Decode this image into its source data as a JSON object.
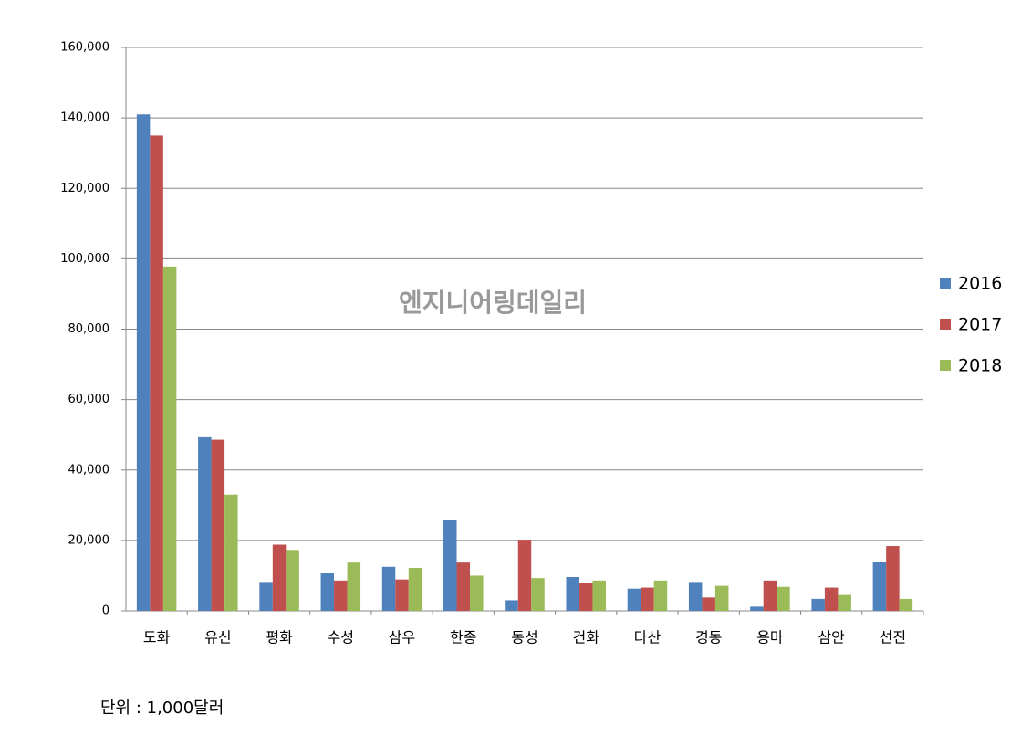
{
  "chart_data": {
    "type": "bar",
    "categories": [
      "도화",
      "유신",
      "평화",
      "수성",
      "삼우",
      "한종",
      "동성",
      "건화",
      "다산",
      "경동",
      "용마",
      "삼안",
      "선진"
    ],
    "series": [
      {
        "name": "2016",
        "color": "#4f81bd",
        "values": [
          141000,
          49300,
          8200,
          10700,
          12500,
          25700,
          3000,
          9600,
          6300,
          8200,
          1200,
          3400,
          14000
        ]
      },
      {
        "name": "2017",
        "color": "#c0504d",
        "values": [
          135000,
          48600,
          18800,
          8600,
          8900,
          13700,
          20200,
          7900,
          6600,
          3800,
          8600,
          6600,
          18400
        ]
      },
      {
        "name": "2018",
        "color": "#9bbb59",
        "values": [
          97800,
          33000,
          17300,
          13700,
          12200,
          10000,
          9300,
          8600,
          8600,
          7100,
          6800,
          4500,
          3400
        ]
      }
    ],
    "ylim": [
      0,
      160000
    ],
    "yticks": [
      0,
      {
        "value": 20000,
        "label": "20,000"
      },
      {
        "value": 40000,
        "label": "40,000"
      },
      {
        "value": 60000,
        "label": "60,000"
      },
      {
        "value": 80000,
        "label": "80,000"
      },
      {
        "value": 100000,
        "label": "100,000"
      },
      {
        "value": 120000,
        "label": "120,000"
      },
      {
        "value": 140000,
        "label": "140,000"
      },
      {
        "value": 160000,
        "label": "160,000"
      }
    ],
    "grid": true,
    "legend": "right",
    "watermark": "엔지니어링데일리",
    "note": "단위 : 1,000달러"
  }
}
